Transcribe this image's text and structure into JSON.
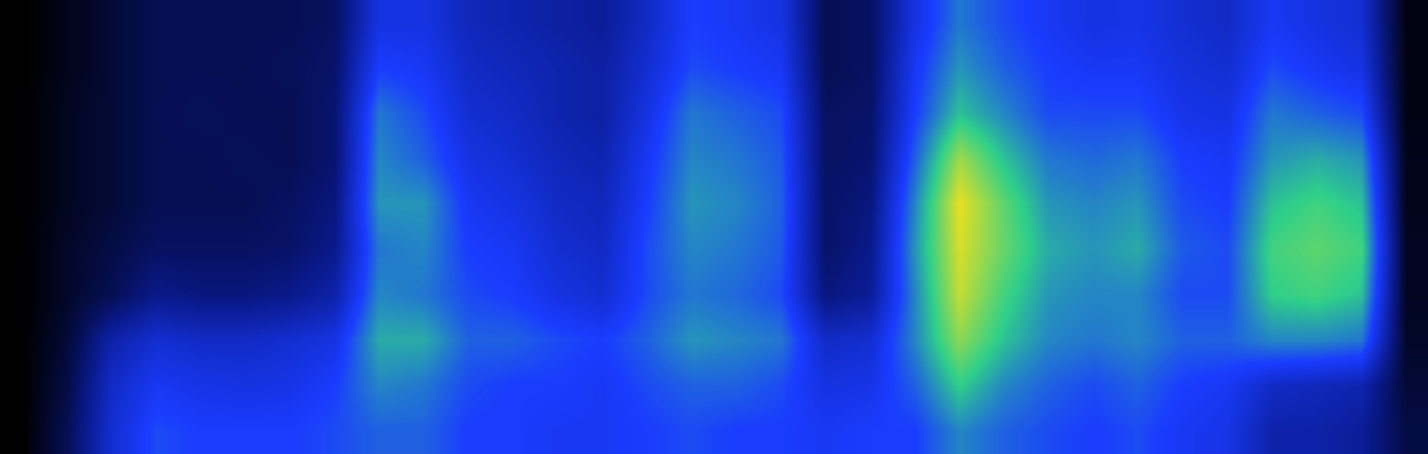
{
  "chart_data": {
    "type": "heatmap",
    "tick_labels": false,
    "zlim": [
      0,
      100
    ],
    "cells": [
      [
        0,
        4,
        8,
        12,
        12,
        12,
        12,
        14,
        35,
        35,
        28,
        26,
        24,
        22,
        30,
        40,
        38,
        35,
        12,
        14,
        35,
        48,
        42,
        38,
        35,
        36,
        32,
        30,
        38,
        35,
        32,
        3
      ],
      [
        0,
        4,
        8,
        12,
        12,
        12,
        13,
        15,
        40,
        38,
        30,
        28,
        26,
        24,
        32,
        42,
        40,
        38,
        12,
        14,
        38,
        52,
        45,
        40,
        38,
        38,
        34,
        32,
        42,
        38,
        35,
        3
      ],
      [
        0,
        5,
        8,
        12,
        13,
        12,
        12,
        16,
        48,
        42,
        32,
        30,
        26,
        24,
        35,
        48,
        45,
        42,
        14,
        15,
        40,
        58,
        50,
        42,
        42,
        42,
        36,
        35,
        48,
        45,
        42,
        3
      ],
      [
        0,
        5,
        8,
        12,
        12,
        13,
        12,
        16,
        50,
        45,
        35,
        32,
        28,
        26,
        38,
        50,
        48,
        44,
        14,
        16,
        45,
        72,
        58,
        48,
        46,
        48,
        40,
        38,
        52,
        55,
        52,
        4
      ],
      [
        0,
        5,
        8,
        12,
        12,
        12,
        14,
        18,
        52,
        52,
        38,
        35,
        30,
        28,
        40,
        52,
        50,
        45,
        15,
        18,
        50,
        80,
        65,
        52,
        50,
        52,
        42,
        40,
        58,
        62,
        58,
        4
      ],
      [
        0,
        6,
        10,
        14,
        14,
        14,
        15,
        20,
        48,
        50,
        40,
        38,
        32,
        30,
        42,
        50,
        48,
        44,
        15,
        20,
        52,
        78,
        66,
        55,
        52,
        55,
        44,
        42,
        62,
        65,
        62,
        5
      ],
      [
        0,
        6,
        12,
        20,
        18,
        18,
        20,
        25,
        50,
        48,
        42,
        40,
        35,
        32,
        42,
        48,
        46,
        42,
        18,
        22,
        50,
        76,
        62,
        52,
        50,
        50,
        42,
        42,
        60,
        62,
        58,
        5
      ],
      [
        0,
        8,
        25,
        32,
        30,
        30,
        32,
        35,
        55,
        55,
        45,
        45,
        42,
        40,
        45,
        52,
        50,
        48,
        30,
        32,
        50,
        70,
        58,
        50,
        48,
        50,
        45,
        45,
        50,
        50,
        48,
        6
      ],
      [
        0,
        10,
        30,
        38,
        36,
        35,
        36,
        40,
        50,
        48,
        42,
        40,
        40,
        38,
        42,
        45,
        45,
        42,
        35,
        36,
        45,
        60,
        50,
        45,
        42,
        45,
        40,
        38,
        30,
        28,
        26,
        8
      ],
      [
        0,
        12,
        32,
        42,
        40,
        40,
        40,
        42,
        45,
        45,
        40,
        40,
        38,
        38,
        40,
        42,
        40,
        40,
        38,
        40,
        40,
        50,
        45,
        42,
        40,
        42,
        38,
        36,
        25,
        25,
        22,
        10
      ]
    ]
  }
}
